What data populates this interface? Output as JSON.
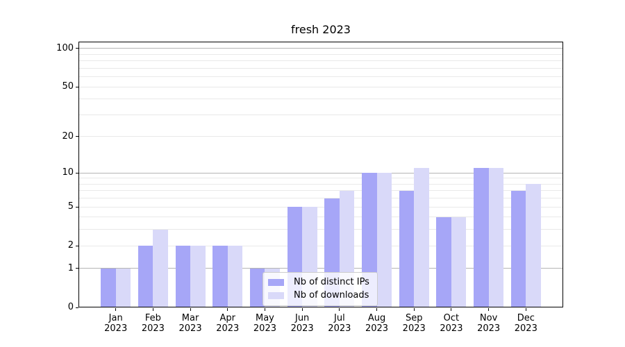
{
  "title": "fresh 2023",
  "chart_data": {
    "type": "bar",
    "title": "fresh 2023",
    "xlabel": "",
    "ylabel": "",
    "categories": [
      "Jan 2023",
      "Feb 2023",
      "Mar 2023",
      "Apr 2023",
      "May 2023",
      "Jun 2023",
      "Jul 2023",
      "Aug 2023",
      "Sep 2023",
      "Oct 2023",
      "Nov 2023",
      "Dec 2023"
    ],
    "series": [
      {
        "name": "Nb of distinct IPs",
        "color": "#a6a6f7",
        "values": [
          1,
          2,
          2,
          2,
          1,
          5,
          6,
          10,
          7,
          4,
          11,
          7
        ]
      },
      {
        "name": "Nb of downloads",
        "color": "#d9d9f9",
        "values": [
          1,
          3,
          2,
          2,
          1,
          5,
          7,
          10,
          11,
          4,
          11,
          8
        ]
      }
    ],
    "yscale": "log1p",
    "ylim": [
      0,
      113
    ],
    "yticks": [
      0,
      1,
      2,
      5,
      10,
      20,
      50,
      100
    ],
    "gridlines_major": [
      1,
      10,
      100
    ],
    "gridlines_minor": [
      2,
      3,
      4,
      5,
      6,
      7,
      8,
      9,
      20,
      30,
      40,
      50,
      60,
      70,
      80,
      90
    ],
    "grid_color_major": "#b4b4b4",
    "grid_color_minor": "#e9e9e9",
    "legend_position": "lower center",
    "grid": "on"
  }
}
